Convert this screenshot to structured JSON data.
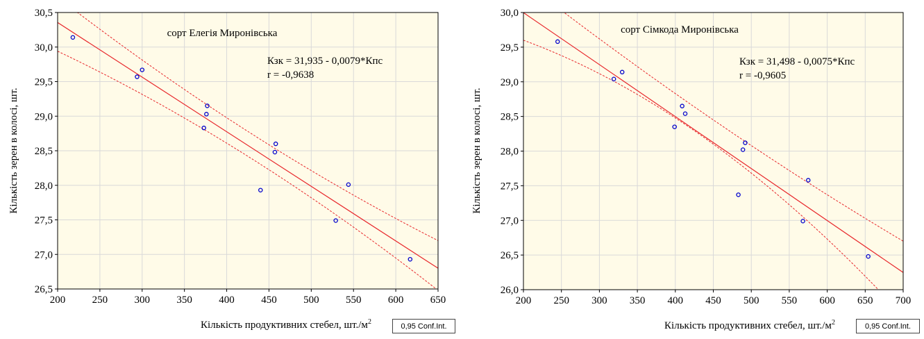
{
  "chart_data": [
    {
      "type": "scatter",
      "title": "сорт Елегія Миронівська",
      "xlabel": "Кількість продуктивних стебел, шт./м",
      "xlabel_sup": "2",
      "ylabel": "Кількість зерен в колосі, шт.",
      "xlim": [
        200,
        650
      ],
      "ylim": [
        26.5,
        30.5
      ],
      "xticks": [
        200,
        250,
        300,
        350,
        400,
        450,
        500,
        550,
        600,
        650
      ],
      "xtick_labels": [
        "200",
        "250",
        "300",
        "350",
        "400",
        "450",
        "500",
        "550",
        "600",
        "650"
      ],
      "yticks": [
        26.5,
        27.0,
        27.5,
        28.0,
        28.5,
        29.0,
        29.5,
        30.0,
        30.5
      ],
      "ytick_labels": [
        "26,5",
        "27,0",
        "27,5",
        "28,0",
        "28,5",
        "29,0",
        "29,5",
        "30,0",
        "30,5"
      ],
      "grid": true,
      "equation": "Кзк = 31,935 - 0,0079*Кпс",
      "r_text": "r = -0,9638",
      "legend": "0,95 Conf.Int.",
      "regression": {
        "intercept": 31.935,
        "slope": -0.0079
      },
      "ci": {
        "lower": [
          [
            200,
            29.94
          ],
          [
            425,
            28.42
          ],
          [
            650,
            26.48
          ]
        ],
        "upper": [
          [
            200,
            30.72
          ],
          [
            425,
            28.78
          ],
          [
            650,
            27.2
          ]
        ]
      },
      "points": [
        {
          "x": 218,
          "y": 30.14
        },
        {
          "x": 294,
          "y": 29.57
        },
        {
          "x": 300,
          "y": 29.67
        },
        {
          "x": 373,
          "y": 28.83
        },
        {
          "x": 376,
          "y": 29.03
        },
        {
          "x": 377,
          "y": 29.15
        },
        {
          "x": 440,
          "y": 27.93
        },
        {
          "x": 457,
          "y": 28.48
        },
        {
          "x": 458,
          "y": 28.6
        },
        {
          "x": 529,
          "y": 27.49
        },
        {
          "x": 544,
          "y": 28.01
        },
        {
          "x": 617,
          "y": 26.93
        }
      ],
      "colors": {
        "points": "#0000cc",
        "line": "#e8272b",
        "ci": "#e8272b",
        "plot_bg": "#fffbe8",
        "grid": "#d9d9d9"
      }
    },
    {
      "type": "scatter",
      "title": "сорт Сімкода Миронівська",
      "xlabel": "Кількість продуктивних стебел, шт./м",
      "xlabel_sup": "2",
      "ylabel": "Кількість зерен в колосі, шт.",
      "xlim": [
        200,
        700
      ],
      "ylim": [
        26.0,
        30.0
      ],
      "xticks": [
        200,
        250,
        300,
        350,
        400,
        450,
        500,
        550,
        600,
        650,
        700
      ],
      "xtick_labels": [
        "200",
        "250",
        "300",
        "350",
        "400",
        "450",
        "500",
        "550",
        "600",
        "650",
        "700"
      ],
      "yticks": [
        26.0,
        26.5,
        27.0,
        27.5,
        28.0,
        28.5,
        29.0,
        29.5,
        30.0
      ],
      "ytick_labels": [
        "26,0",
        "26,5",
        "27,0",
        "27,5",
        "28,0",
        "28,5",
        "29,0",
        "29,5",
        "30,0"
      ],
      "grid": true,
      "equation": "Кзк = 31,498 - 0,0075*Кпс",
      "r_text": "r = -0,9605",
      "legend": "0,95 Conf.Int.",
      "regression": {
        "intercept": 31.498,
        "slope": -0.0075
      },
      "ci": {
        "lower": [
          [
            200,
            29.6
          ],
          [
            450,
            28.1
          ],
          [
            700,
            25.62
          ]
        ],
        "upper": [
          [
            200,
            30.45
          ],
          [
            450,
            28.45
          ],
          [
            700,
            26.7
          ]
        ]
      },
      "points": [
        {
          "x": 245,
          "y": 29.58
        },
        {
          "x": 319,
          "y": 29.04
        },
        {
          "x": 330,
          "y": 29.14
        },
        {
          "x": 399,
          "y": 28.35
        },
        {
          "x": 409,
          "y": 28.65
        },
        {
          "x": 413,
          "y": 28.54
        },
        {
          "x": 483,
          "y": 27.37
        },
        {
          "x": 489,
          "y": 28.02
        },
        {
          "x": 492,
          "y": 28.12
        },
        {
          "x": 568,
          "y": 26.99
        },
        {
          "x": 575,
          "y": 27.58
        },
        {
          "x": 654,
          "y": 26.48
        }
      ],
      "colors": {
        "points": "#0000cc",
        "line": "#e8272b",
        "ci": "#e8272b",
        "plot_bg": "#fffbe8",
        "grid": "#d9d9d9"
      }
    }
  ]
}
